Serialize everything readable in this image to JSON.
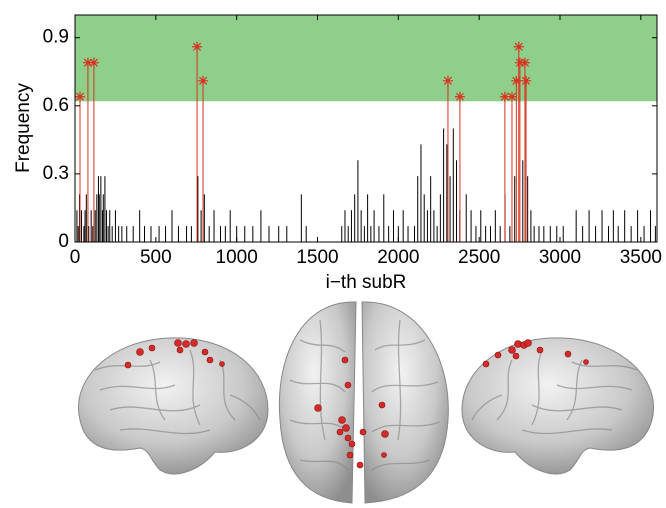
{
  "chart_data": {
    "type": "stem",
    "xlabel": "i−th subR",
    "ylabel": "Frequency",
    "xlim": [
      0,
      3600
    ],
    "ylim": [
      0,
      1
    ],
    "xticks": [
      0,
      500,
      1000,
      1500,
      2000,
      2500,
      3000,
      3500
    ],
    "yticks": [
      0,
      0.3,
      0.6,
      0.9
    ],
    "band": {
      "range": [
        0.62,
        1
      ],
      "color": "#8fce8b"
    },
    "series": [
      {
        "color": "#000000",
        "marker": "none",
        "x": [
          12,
          20,
          28,
          40,
          55,
          62,
          70,
          85,
          100,
          110,
          125,
          135,
          145,
          150,
          160,
          170,
          175,
          185,
          195,
          205,
          215,
          230,
          250,
          270,
          290,
          320,
          360,
          400,
          430,
          470,
          520,
          560,
          600,
          640,
          690,
          720,
          760,
          780,
          800,
          830,
          860,
          900,
          930,
          960,
          1000,
          1050,
          1100,
          1150,
          1200,
          1260,
          1310,
          1400,
          1430,
          1650,
          1670,
          1690,
          1710,
          1730,
          1750,
          1770,
          1790,
          1810,
          1830,
          1850,
          1880,
          1910,
          1940,
          1970,
          2000,
          2030,
          2060,
          2100,
          2120,
          2140,
          2160,
          2180,
          2200,
          2220,
          2240,
          2260,
          2280,
          2300,
          2320,
          2340,
          2360,
          2380,
          2420,
          2450,
          2480,
          2510,
          2540,
          2570,
          2600,
          2630,
          2660,
          2690,
          2720,
          2770,
          2800,
          2820,
          2840,
          2870,
          2900,
          2940,
          2980,
          3020,
          3100,
          3140,
          3180,
          3220,
          3260,
          3300,
          3330,
          3360,
          3400,
          3440,
          3480,
          3520,
          3560,
          3590
        ],
        "values": [
          0.14,
          0.07,
          0.21,
          0.14,
          0.07,
          0.14,
          0.21,
          0.07,
          0.14,
          0.07,
          0.14,
          0.21,
          0.29,
          0.21,
          0.29,
          0.14,
          0.21,
          0.29,
          0.14,
          0.07,
          0.14,
          0.07,
          0.14,
          0.07,
          0.07,
          0.07,
          0.07,
          0.14,
          0.07,
          0.07,
          0.07,
          0.07,
          0.14,
          0.07,
          0.07,
          0.07,
          0.29,
          0.14,
          0.21,
          0.07,
          0.14,
          0.07,
          0.07,
          0.14,
          0.07,
          0.07,
          0.07,
          0.14,
          0.07,
          0.07,
          0.07,
          0.21,
          0.07,
          0.07,
          0.14,
          0.07,
          0.14,
          0.21,
          0.36,
          0.14,
          0.07,
          0.21,
          0.07,
          0.14,
          0.07,
          0.21,
          0.07,
          0.14,
          0.07,
          0.14,
          0.07,
          0.07,
          0.29,
          0.43,
          0.21,
          0.14,
          0.29,
          0.14,
          0.07,
          0.21,
          0.5,
          0.43,
          0.29,
          0.5,
          0.36,
          0.14,
          0.21,
          0.14,
          0.07,
          0.14,
          0.07,
          0.07,
          0.14,
          0.07,
          0.21,
          0.07,
          0.29,
          0.36,
          0.29,
          0.14,
          0.07,
          0.07,
          0.07,
          0.07,
          0.07,
          0.07,
          0.14,
          0.07,
          0.14,
          0.07,
          0.14,
          0.07,
          0.14,
          0.07,
          0.14,
          0.07,
          0.14,
          0.07,
          0.14,
          0.07
        ]
      },
      {
        "color": "#d8321e",
        "marker": "*",
        "x": [
          31,
          80,
          117,
          755,
          792,
          2307,
          2381,
          2659,
          2703,
          2730,
          2745,
          2752,
          2783,
          2790
        ],
        "values": [
          0.64,
          0.79,
          0.79,
          0.86,
          0.71,
          0.71,
          0.64,
          0.64,
          0.64,
          0.71,
          0.86,
          0.79,
          0.79,
          0.71
        ]
      }
    ]
  }
}
